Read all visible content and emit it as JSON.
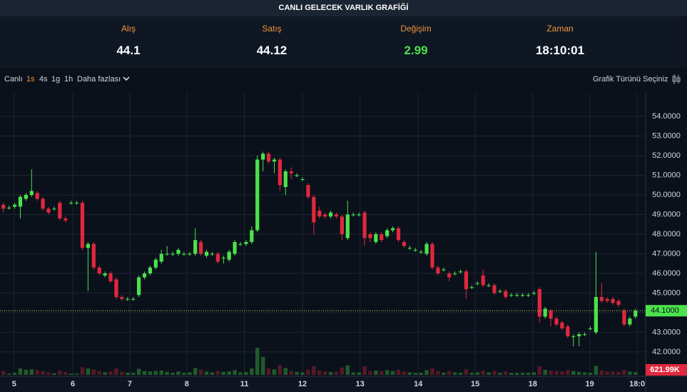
{
  "header": {
    "title": "CANLI GELECEK VARLIK GRAFİĞİ"
  },
  "stats": [
    {
      "label": "Alış",
      "value": 44.1,
      "color": "#ffffff"
    },
    {
      "label": "Satış",
      "value": 44.12,
      "color": "#ffffff"
    },
    {
      "label": "Değişim",
      "value": 2.99,
      "color": "#4be24b"
    },
    {
      "label": "Zaman",
      "value": "18:10:01",
      "color": "#ffffff"
    }
  ],
  "toolbar": {
    "intervals": [
      "Canlı",
      "1s",
      "4s",
      "1g",
      "1h",
      "Daha fazlası"
    ],
    "active_index": 1,
    "chart_type": "Grafik Türünü Seçiniz"
  },
  "chart_data": {
    "type": "candlestick",
    "up_color": "#4be24b",
    "down_color": "#e0283e",
    "grid": true,
    "ylim": [
      40.76,
      55.2
    ],
    "yticks": [
      {
        "value": 42,
        "label": "42.0000"
      },
      {
        "value": 43,
        "label": "43.0000"
      },
      {
        "value": 44,
        "label": "44.0000"
      },
      {
        "value": 45,
        "label": "45.0000"
      },
      {
        "value": 46,
        "label": "46.0000"
      },
      {
        "value": 47,
        "label": "47.0000"
      },
      {
        "value": 48,
        "label": "48.0000"
      },
      {
        "value": 49,
        "label": "49.0000"
      },
      {
        "value": 50,
        "label": "50.0000"
      },
      {
        "value": 51,
        "label": "51.0000"
      },
      {
        "value": 52,
        "label": "52.0000"
      },
      {
        "value": 53,
        "label": "53.0000"
      },
      {
        "value": 54,
        "label": "54.0000"
      }
    ],
    "xlim": [
      -0.6,
      113.8
    ],
    "xticks": [
      {
        "value": 1.9,
        "label": "5"
      },
      {
        "value": 12.3,
        "label": "6"
      },
      {
        "value": 22.4,
        "label": "7"
      },
      {
        "value": 32.5,
        "label": "8"
      },
      {
        "value": 42.7,
        "label": "11"
      },
      {
        "value": 53,
        "label": "12"
      },
      {
        "value": 63.2,
        "label": "13"
      },
      {
        "value": 73.5,
        "label": "14"
      },
      {
        "value": 83.6,
        "label": "15"
      },
      {
        "value": 93.8,
        "label": "18"
      },
      {
        "value": 103.9,
        "label": "19"
      },
      {
        "value": 112.3,
        "label": "18:0"
      }
    ],
    "candles": [
      [
        49.5,
        49.6,
        49.1,
        49.3
      ],
      [
        49.35,
        49.45,
        49.25,
        49.35
      ],
      [
        49.4,
        49.6,
        49.3,
        49.5
      ],
      [
        49.4,
        50.0,
        48.8,
        49.9
      ],
      [
        49.8,
        50.1,
        49.7,
        50.0
      ],
      [
        50.0,
        51.3,
        49.9,
        50.2
      ],
      [
        50.1,
        50.2,
        49.7,
        49.8
      ],
      [
        49.8,
        49.9,
        49.2,
        49.3
      ],
      [
        49.3,
        49.4,
        49.0,
        49.1
      ],
      [
        49.3,
        49.4,
        49.2,
        49.3
      ],
      [
        49.6,
        49.7,
        48.7,
        48.8
      ],
      [
        48.8,
        48.9,
        48.6,
        48.7
      ],
      [
        49.6,
        49.7,
        49.5,
        49.6
      ],
      [
        49.6,
        49.7,
        49.5,
        49.6
      ],
      [
        49.6,
        49.7,
        47.2,
        47.3
      ],
      [
        47.3,
        47.6,
        45.1,
        47.5
      ],
      [
        47.5,
        47.6,
        46.2,
        46.3
      ],
      [
        46.3,
        46.4,
        45.9,
        46.0
      ],
      [
        45.9,
        46.1,
        45.8,
        46.0
      ],
      [
        46.0,
        46.1,
        45.5,
        45.6
      ],
      [
        45.7,
        45.8,
        44.7,
        44.8
      ],
      [
        44.8,
        44.9,
        44.6,
        44.7
      ],
      [
        44.7,
        44.8,
        44.6,
        44.7
      ],
      [
        44.7,
        44.8,
        44.6,
        44.7
      ],
      [
        44.9,
        45.9,
        44.8,
        45.8
      ],
      [
        45.8,
        46.1,
        45.7,
        46.0
      ],
      [
        46.0,
        46.4,
        45.9,
        46.3
      ],
      [
        46.3,
        46.8,
        46.2,
        46.7
      ],
      [
        46.6,
        47.2,
        46.5,
        47.0
      ],
      [
        47.0,
        47.4,
        46.9,
        47.0
      ],
      [
        47.0,
        47.1,
        46.9,
        47.0
      ],
      [
        47.0,
        47.3,
        46.9,
        47.2
      ],
      [
        47.0,
        47.1,
        46.9,
        47.0
      ],
      [
        47.0,
        47.1,
        46.9,
        47.0
      ],
      [
        47.0,
        48.3,
        46.9,
        47.7
      ],
      [
        47.6,
        47.7,
        46.9,
        47.0
      ],
      [
        46.9,
        47.2,
        46.8,
        47.1
      ],
      [
        47.0,
        47.1,
        46.9,
        47.0
      ],
      [
        47.0,
        47.1,
        46.5,
        46.6
      ],
      [
        46.8,
        46.9,
        46.5,
        46.8
      ],
      [
        46.7,
        47.2,
        46.6,
        47.1
      ],
      [
        47.0,
        47.7,
        46.9,
        47.6
      ],
      [
        47.5,
        47.6,
        47.4,
        47.5
      ],
      [
        47.5,
        47.7,
        47.4,
        47.6
      ],
      [
        47.6,
        48.4,
        47.5,
        48.2
      ],
      [
        48.2,
        52.0,
        48.1,
        51.8
      ],
      [
        51.8,
        52.2,
        51.2,
        52.1
      ],
      [
        52.1,
        52.2,
        51.6,
        51.7
      ],
      [
        51.7,
        51.9,
        51.1,
        51.8
      ],
      [
        51.8,
        51.9,
        50.2,
        50.5
      ],
      [
        50.4,
        51.3,
        50.0,
        51.2
      ],
      [
        51.2,
        51.4,
        50.8,
        51.1
      ],
      [
        51.0,
        51.1,
        50.9,
        51.0
      ],
      [
        50.8,
        50.9,
        50.7,
        50.8
      ],
      [
        50.5,
        50.6,
        49.8,
        49.9
      ],
      [
        49.9,
        50.0,
        48.0,
        48.6
      ],
      [
        49.2,
        49.4,
        48.8,
        48.9
      ],
      [
        49.0,
        49.1,
        48.8,
        48.9
      ],
      [
        48.9,
        49.2,
        48.8,
        49.1
      ],
      [
        49.0,
        49.1,
        48.8,
        48.9
      ],
      [
        48.9,
        49.0,
        47.7,
        48.0
      ],
      [
        47.8,
        49.7,
        47.7,
        49.0
      ],
      [
        49.0,
        49.1,
        48.9,
        49.0
      ],
      [
        49.0,
        49.1,
        48.9,
        49.0
      ],
      [
        49.1,
        49.2,
        47.4,
        47.8
      ],
      [
        48.0,
        48.1,
        47.6,
        47.8
      ],
      [
        47.6,
        48.1,
        47.5,
        48.0
      ],
      [
        48.0,
        48.1,
        47.6,
        47.7
      ],
      [
        47.9,
        48.3,
        47.8,
        48.2
      ],
      [
        48.2,
        48.4,
        48.1,
        48.3
      ],
      [
        48.3,
        48.4,
        47.6,
        47.7
      ],
      [
        47.6,
        47.7,
        47.3,
        47.4
      ],
      [
        47.3,
        47.4,
        47.2,
        47.3
      ],
      [
        47.2,
        47.3,
        47.1,
        47.2
      ],
      [
        47.1,
        47.2,
        47.0,
        47.1
      ],
      [
        47.0,
        47.6,
        46.9,
        47.5
      ],
      [
        47.5,
        47.6,
        46.2,
        46.3
      ],
      [
        46.3,
        46.4,
        45.9,
        46.0
      ],
      [
        46.2,
        46.3,
        46.1,
        46.2
      ],
      [
        46.0,
        46.1,
        45.6,
        45.8
      ],
      [
        46.0,
        46.1,
        45.9,
        46.0
      ],
      [
        46.1,
        46.2,
        46.0,
        46.1
      ],
      [
        46.1,
        46.2,
        44.7,
        45.2
      ],
      [
        45.3,
        45.4,
        45.2,
        45.3
      ],
      [
        45.5,
        45.6,
        45.4,
        45.5
      ],
      [
        45.9,
        46.2,
        45.3,
        45.4
      ],
      [
        45.4,
        45.5,
        45.3,
        45.4
      ],
      [
        45.4,
        45.5,
        44.9,
        45.0
      ],
      [
        45.1,
        45.2,
        45.0,
        45.1
      ],
      [
        45.1,
        45.2,
        44.7,
        44.8
      ],
      [
        44.9,
        45.0,
        44.8,
        44.9
      ],
      [
        44.9,
        45.0,
        44.8,
        44.9
      ],
      [
        44.9,
        45.0,
        44.8,
        44.9
      ],
      [
        44.9,
        45.0,
        44.8,
        44.9
      ],
      [
        45.0,
        45.1,
        44.9,
        45.0
      ],
      [
        45.2,
        45.3,
        43.5,
        43.8
      ],
      [
        43.8,
        44.3,
        43.7,
        44.2
      ],
      [
        44.1,
        44.2,
        43.3,
        43.7
      ],
      [
        43.7,
        43.8,
        43.3,
        43.4
      ],
      [
        43.5,
        43.6,
        43.1,
        43.2
      ],
      [
        43.3,
        43.4,
        42.7,
        42.8
      ],
      [
        42.8,
        42.9,
        42.3,
        42.8
      ],
      [
        42.8,
        43.0,
        42.3,
        42.9
      ],
      [
        42.9,
        43.0,
        42.8,
        42.9
      ],
      [
        43.2,
        43.3,
        43.1,
        43.2
      ],
      [
        43.0,
        47.1,
        42.9,
        44.8
      ],
      [
        44.8,
        45.5,
        44.5,
        44.6
      ],
      [
        44.7,
        44.8,
        44.5,
        44.6
      ],
      [
        44.7,
        44.8,
        44.4,
        44.5
      ],
      [
        44.6,
        44.7,
        44.3,
        44.4
      ],
      [
        44.1,
        44.2,
        43.3,
        43.4
      ],
      [
        43.4,
        43.8,
        43.3,
        43.7
      ],
      [
        43.8,
        44.2,
        43.7,
        44.1
      ]
    ],
    "volume": {
      "vlim": [
        0,
        10000000
      ],
      "values": [
        900000,
        300000,
        500000,
        1500000,
        1200000,
        1300000,
        1100000,
        900000,
        600000,
        400000,
        1000000,
        700000,
        300000,
        300000,
        1800000,
        1500000,
        1200000,
        900000,
        600000,
        800000,
        1500000,
        700000,
        500000,
        500000,
        1400000,
        900000,
        800000,
        900000,
        1000000,
        700000,
        500000,
        800000,
        500000,
        600000,
        1600000,
        1200000,
        800000,
        600000,
        900000,
        700000,
        800000,
        1100000,
        600000,
        700000,
        1500000,
        6300000,
        4200000,
        1500000,
        1300000,
        2300000,
        1600000,
        900000,
        700000,
        600000,
        1200000,
        2000000,
        1000000,
        800000,
        700000,
        800000,
        1700000,
        2200000,
        600000,
        600000,
        2000000,
        900000,
        1000000,
        900000,
        1100000,
        900000,
        1200000,
        800000,
        600000,
        500000,
        500000,
        1100000,
        1500000,
        900000,
        500000,
        900000,
        600000,
        500000,
        1300000,
        500000,
        600000,
        1000000,
        600000,
        900000,
        500000,
        800000,
        500000,
        500000,
        500000,
        500000,
        600000,
        2000000,
        1200000,
        1000000,
        900000,
        800000,
        1100000,
        900000,
        700000,
        600000,
        500000,
        2100000,
        1000000,
        800000,
        800000,
        700000,
        1200000,
        800000,
        621990
      ],
      "last_label": "621.99K"
    },
    "last_price": {
      "value": 44.1,
      "label": "44.1000"
    }
  }
}
